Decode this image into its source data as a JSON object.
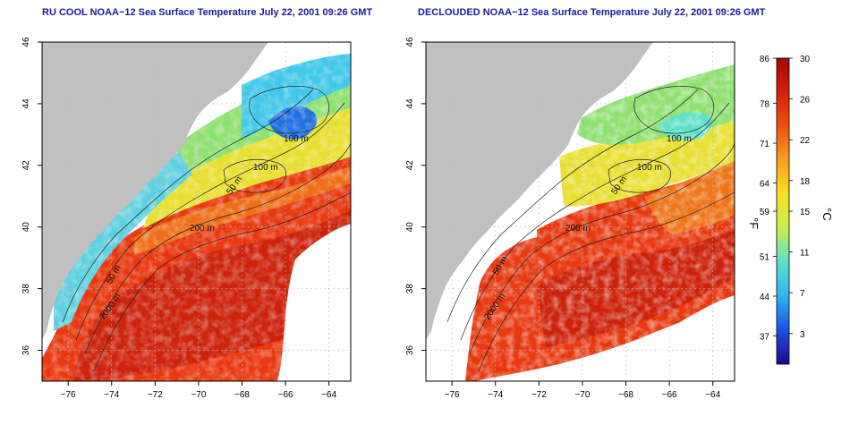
{
  "panels": [
    {
      "title": "RU COOL NOAA−12 Sea Surface Temperature July 22, 2001 09:26 GMT",
      "contour_labels": [
        "100 m",
        "100 m",
        "50 m",
        "200 m",
        "50 m",
        "2000 m"
      ]
    },
    {
      "title": "DECLOUDED NOAA−12 Sea Surface Temperature July 22, 2001 09:26 GMT",
      "contour_labels": [
        "100 m",
        "100 m",
        "50 m",
        "200 m",
        "50 m",
        "2000 m"
      ]
    }
  ],
  "axes": {
    "x_ticks": [
      "−76",
      "−74",
      "−72",
      "−70",
      "−68",
      "−66",
      "−64"
    ],
    "y_ticks": [
      "36",
      "38",
      "40",
      "42",
      "44",
      "46"
    ],
    "lon_values": [
      -76,
      -74,
      -72,
      -70,
      -68,
      -66,
      -64
    ],
    "lat_values": [
      36,
      38,
      40,
      42,
      44,
      46
    ],
    "lon_range": [
      -77.2,
      -63.0
    ],
    "lat_range": [
      35.0,
      46.0
    ],
    "grid": true
  },
  "colorbar": {
    "f_label": "°F",
    "c_label": "°C",
    "f_ticks": [
      "86",
      "78",
      "71",
      "64",
      "59",
      "51",
      "44",
      "37"
    ],
    "c_ticks": [
      "30",
      "26",
      "22",
      "18",
      "15",
      "11",
      "7",
      "3"
    ],
    "f_values": [
      86,
      78,
      71,
      64,
      59,
      51,
      44,
      37
    ],
    "c_values": [
      30,
      26,
      22,
      18,
      15,
      11,
      7,
      3
    ],
    "range_c": [
      0,
      30
    ],
    "stops": [
      "#1a0a8c",
      "#1f4fe0",
      "#2fb5f0",
      "#5de0c8",
      "#c8ef50",
      "#f8e020",
      "#f8a020",
      "#f05010",
      "#d81e0a",
      "#a00808"
    ]
  },
  "colors": {
    "land": "#c0c0c0",
    "cloud": "#ffffff",
    "title": "#1a1aa0",
    "contour": "#222222",
    "grid": "#bbbbbb"
  }
}
